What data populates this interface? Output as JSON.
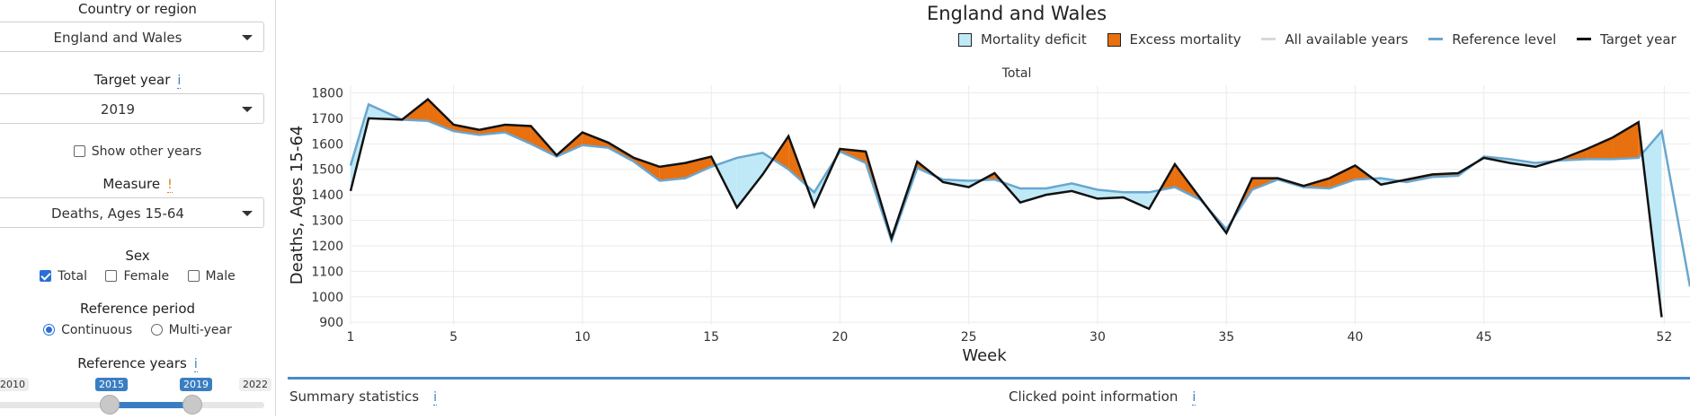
{
  "sidebar": {
    "country_label": "Country or region",
    "country_value": "England and Wales",
    "target_year_label": "Target year",
    "target_year_info": "i",
    "target_year_value": "2019",
    "show_other_years": "Show other years",
    "measure_label": "Measure",
    "measure_warn": "!",
    "measure_value": "Deaths, Ages 15-64",
    "sex_label": "Sex",
    "sex_options": [
      "Total",
      "Female",
      "Male"
    ],
    "sex_checked": [
      true,
      false,
      false
    ],
    "ref_period_label": "Reference period",
    "ref_period_options": [
      "Continuous",
      "Multi-year"
    ],
    "ref_years_label": "Reference years",
    "ref_years_info": "i",
    "slider": {
      "min": "2010",
      "max": "2022",
      "from": "2015",
      "to": "2019"
    }
  },
  "chart": {
    "title": "England and Wales",
    "subtitle": "Total",
    "legend": [
      "Mortality deficit",
      "Excess mortality",
      "All available years",
      "Reference level",
      "Target year"
    ]
  },
  "colors": {
    "deficit": "#bfe9f7",
    "excess": "#e8700f",
    "reference": "#6aa6cf",
    "target": "#111111",
    "all_years": "#d9d9d9",
    "accent": "#3a7ec2"
  },
  "chart_data": {
    "type": "area",
    "xlabel": "Week",
    "ylabel": "Deaths, Ages 15-64",
    "xticks": [
      1,
      5,
      10,
      15,
      20,
      25,
      30,
      35,
      40,
      45,
      52
    ],
    "yticks": [
      900,
      1000,
      1100,
      1200,
      1300,
      1400,
      1500,
      1600,
      1700,
      1800
    ],
    "ylim": [
      890,
      1830
    ],
    "xlim": [
      1,
      53
    ],
    "series": [
      {
        "name": "Reference level",
        "x": [
          1,
          1.7,
          3,
          4,
          5,
          6,
          7,
          8,
          9,
          10,
          11,
          12,
          13,
          14,
          15,
          16,
          17,
          18,
          19,
          20,
          21,
          22,
          23,
          24,
          25,
          26,
          27,
          28,
          29,
          30,
          31,
          32,
          33,
          34,
          35,
          36,
          37,
          38,
          39,
          40,
          41,
          42,
          43,
          44,
          45,
          46,
          47,
          48,
          49,
          50,
          51,
          51.9,
          53
        ],
        "values": [
          1515,
          1755,
          1695,
          1690,
          1650,
          1635,
          1645,
          1600,
          1550,
          1595,
          1585,
          1530,
          1455,
          1465,
          1510,
          1545,
          1565,
          1500,
          1410,
          1570,
          1525,
          1220,
          1505,
          1460,
          1455,
          1460,
          1425,
          1425,
          1445,
          1420,
          1410,
          1410,
          1430,
          1380,
          1265,
          1420,
          1460,
          1430,
          1425,
          1460,
          1465,
          1450,
          1470,
          1475,
          1550,
          1540,
          1525,
          1535,
          1540,
          1540,
          1545,
          1650,
          1040
        ]
      },
      {
        "name": "Target year",
        "x": [
          1,
          1.7,
          3,
          4,
          5,
          6,
          7,
          8,
          9,
          10,
          11,
          12,
          13,
          14,
          15,
          16,
          17,
          18,
          19,
          20,
          21,
          22,
          23,
          24,
          25,
          26,
          27,
          28,
          29,
          30,
          31,
          32,
          33,
          34,
          35,
          36,
          37,
          38,
          39,
          40,
          41,
          42,
          43,
          44,
          45,
          46,
          47,
          48,
          49,
          50,
          51,
          51.9
        ],
        "values": [
          1415,
          1700,
          1695,
          1775,
          1675,
          1655,
          1675,
          1670,
          1555,
          1645,
          1605,
          1545,
          1510,
          1525,
          1550,
          1350,
          1480,
          1630,
          1355,
          1580,
          1570,
          1230,
          1530,
          1450,
          1430,
          1485,
          1370,
          1400,
          1415,
          1385,
          1390,
          1345,
          1520,
          1385,
          1250,
          1465,
          1465,
          1435,
          1465,
          1515,
          1440,
          1460,
          1480,
          1485,
          1545,
          1525,
          1510,
          1540,
          1580,
          1625,
          1685,
          920
        ]
      }
    ]
  },
  "bottom": {
    "summary": "Summary statistics",
    "summary_info": "i",
    "clicked": "Clicked point information",
    "clicked_info": "i"
  }
}
